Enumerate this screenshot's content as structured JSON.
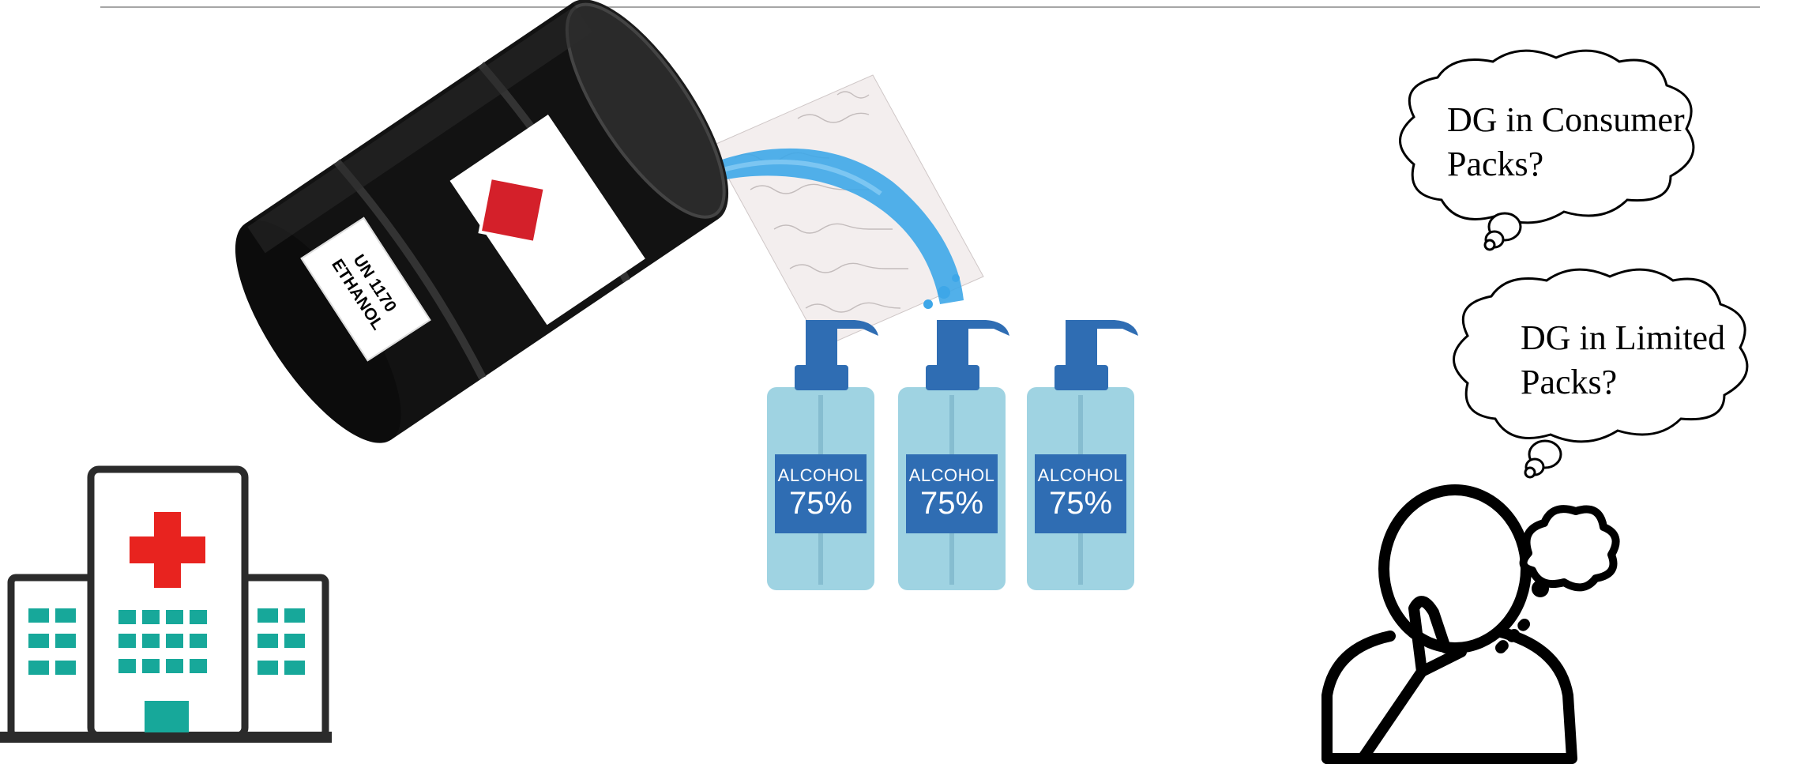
{
  "bubbles": {
    "consumer": {
      "line1": "DG in Consumer",
      "line2": "Packs?"
    },
    "limited": {
      "line1": "DG in Limited",
      "line2": "Packs?"
    }
  },
  "bottles": [
    {
      "word": "ALCOHOL",
      "percent": "75%"
    },
    {
      "word": "ALCOHOL",
      "percent": "75%"
    },
    {
      "word": "ALCOHOL",
      "percent": "75%"
    }
  ],
  "barrel": {
    "un_line1": "UN 1170",
    "un_line2": "ETHANOL"
  },
  "colors": {
    "bottle_body": "#9fd3e2",
    "bottle_pump": "#2f6db3",
    "barrel": "#121212",
    "hospital_teal": "#17a89a",
    "hospital_cross": "#e8231f",
    "splash": "#3ea7e8"
  }
}
